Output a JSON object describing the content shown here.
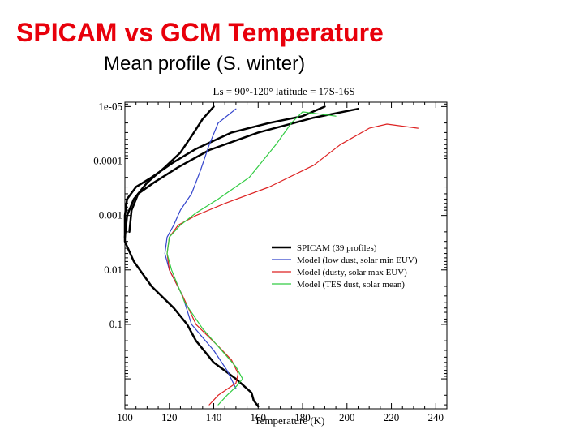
{
  "slide": {
    "title": "SPICAM vs GCM Temperature",
    "subtitle": "Mean profile (S. winter)",
    "title_color": "#e8000b"
  },
  "chart_data": {
    "type": "line",
    "title": "Ls = 90°-120°   latitude = 17S-16S",
    "xlabel": "Temperature (K)",
    "ylabel": "",
    "xlim": [
      100,
      245
    ],
    "ylim_log10": [
      -5.08,
      0.55
    ],
    "y_scale": "log",
    "x_ticks": [
      100,
      120,
      140,
      160,
      180,
      200,
      220,
      240
    ],
    "y_ticks": [
      {
        "value": 1e-05,
        "label": "1e-05"
      },
      {
        "value": 0.0001,
        "label": "0.0001"
      },
      {
        "value": 0.001,
        "label": "0.001"
      },
      {
        "value": 0.01,
        "label": "0.01"
      },
      {
        "value": 0.1,
        "label": "0.1"
      }
    ],
    "legend_position": "right-middle",
    "series": [
      {
        "name": "SPICAM (39 profiles)",
        "color": "#000000",
        "width": 2.5,
        "points": [
          [
            160,
            3.2
          ],
          [
            158,
            2.5
          ],
          [
            157,
            1.8
          ],
          [
            150,
            1.0
          ],
          [
            140,
            0.5
          ],
          [
            132,
            0.2
          ],
          [
            128,
            0.1
          ],
          [
            122,
            0.05
          ],
          [
            112,
            0.02
          ],
          [
            104,
            0.007
          ],
          [
            100,
            0.003
          ],
          [
            100,
            0.001
          ],
          [
            101,
            0.0005
          ],
          [
            105,
            0.0003
          ],
          [
            112,
            0.0002
          ],
          [
            122,
            0.000105
          ],
          [
            132,
            6e-05
          ],
          [
            148,
            3e-05
          ],
          [
            165,
            2e-05
          ],
          [
            180,
            1.5e-05
          ],
          [
            190,
            1e-05
          ]
        ]
      },
      {
        "name": "",
        "color": "#000000",
        "width": 2.5,
        "points": [
          [
            102,
            0.002
          ],
          [
            103,
            0.0008
          ],
          [
            106,
            0.0004
          ],
          [
            113,
            0.00025
          ],
          [
            124,
            0.00013
          ],
          [
            138,
            6.3e-05
          ],
          [
            160,
            3e-05
          ],
          [
            185,
            1.6e-05
          ],
          [
            205,
            1.1e-05
          ]
        ]
      },
      {
        "name": "",
        "color": "#000000",
        "width": 2.5,
        "points": [
          [
            100,
            0.0025
          ],
          [
            101,
            0.001
          ],
          [
            104,
            0.0005
          ],
          [
            110,
            0.00025
          ],
          [
            118,
            0.00013
          ],
          [
            125,
            7e-05
          ],
          [
            130,
            3.5e-05
          ],
          [
            135,
            1.7e-05
          ],
          [
            140,
            1e-05
          ]
        ]
      },
      {
        "name": "Model (low dust, solar min EUV)",
        "color": "#3344cc",
        "width": 1.2,
        "points": [
          [
            150,
            1.5
          ],
          [
            146,
            0.7
          ],
          [
            140,
            0.3
          ],
          [
            130,
            0.1
          ],
          [
            126,
            0.03
          ],
          [
            120,
            0.01
          ],
          [
            118,
            0.005
          ],
          [
            119,
            0.0025
          ],
          [
            122,
            0.0015
          ],
          [
            125,
            0.0008
          ],
          [
            130,
            0.0004
          ],
          [
            134,
            0.00015
          ],
          [
            138,
            5e-05
          ],
          [
            142,
            2e-05
          ],
          [
            150,
            1.1e-05
          ]
        ]
      },
      {
        "name": "Model (dusty, solar max EUV)",
        "color": "#dd2222",
        "width": 1.2,
        "points": [
          [
            138,
            3.0
          ],
          [
            142,
            2.0
          ],
          [
            150,
            1.2
          ],
          [
            151,
            0.8
          ],
          [
            148,
            0.45
          ],
          [
            142,
            0.25
          ],
          [
            132,
            0.1
          ],
          [
            126,
            0.03
          ],
          [
            120,
            0.01
          ],
          [
            119,
            0.005
          ],
          [
            120,
            0.0025
          ],
          [
            124,
            0.0015
          ],
          [
            132,
            0.001
          ],
          [
            145,
            0.0006
          ],
          [
            165,
            0.0003
          ],
          [
            185,
            0.00012
          ],
          [
            197,
            5e-05
          ],
          [
            210,
            2.5e-05
          ],
          [
            218,
            2.1e-05
          ],
          [
            232,
            2.5e-05
          ]
        ]
      },
      {
        "name": "Model (TES dust, solar mean)",
        "color": "#33cc44",
        "width": 1.2,
        "points": [
          [
            142,
            3.0
          ],
          [
            146,
            2.0
          ],
          [
            150,
            1.4
          ],
          [
            153,
            1.0
          ],
          [
            150,
            0.6
          ],
          [
            145,
            0.35
          ],
          [
            135,
            0.12
          ],
          [
            127,
            0.04
          ],
          [
            121,
            0.01
          ],
          [
            119,
            0.005
          ],
          [
            120,
            0.0025
          ],
          [
            125,
            0.0015
          ],
          [
            132,
            0.0009
          ],
          [
            142,
            0.0005
          ],
          [
            156,
            0.0002
          ],
          [
            168,
            5e-05
          ],
          [
            175,
            2e-05
          ],
          [
            180,
            1.25e-05
          ],
          [
            195,
            1.5e-05
          ]
        ]
      }
    ]
  }
}
